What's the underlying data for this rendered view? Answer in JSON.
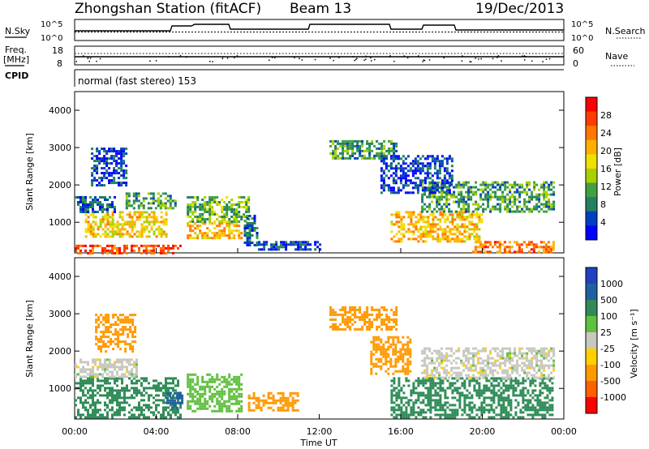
{
  "header": {
    "station": "Zhongshan Station (fitACF)",
    "beam": "Beam 13",
    "date": "19/Dec/2013"
  },
  "top_panels": {
    "nsky_label": "N.Sky",
    "nsearch_label": "N.Search",
    "freq_label_1": "Freq.",
    "freq_label_2": "[MHz]",
    "cpid_label": "CPID",
    "nave_label": "Nave",
    "nsky_ticks": [
      "10^5",
      "10^0"
    ],
    "nsearch_ticks": [
      "10^5",
      "10^0"
    ],
    "freq_ticks": [
      "18",
      "8"
    ],
    "nave_ticks": [
      "60",
      "0"
    ],
    "cpid_text": "normal (fast stereo) 153"
  },
  "x_axis": {
    "label": "Time UT",
    "ticks": [
      "00:00",
      "04:00",
      "08:00",
      "12:00",
      "16:00",
      "20:00",
      "00:00"
    ]
  },
  "power_colorbar": {
    "label": "Power [dB]",
    "ticks": [
      "28",
      "24",
      "20",
      "16",
      "12",
      "8",
      "4"
    ],
    "colors": [
      "#ff0000",
      "#ff3c00",
      "#ff7800",
      "#ffb000",
      "#f0e000",
      "#a8d000",
      "#40a040",
      "#208060",
      "#0040c0",
      "#0000ff"
    ]
  },
  "velocity_colorbar": {
    "label": "Velocity [m s⁻¹]",
    "ticks": [
      "1000",
      "500",
      "100",
      "25",
      "-25",
      "-100",
      "-500",
      "-1000"
    ],
    "colors": [
      "#2040c0",
      "#2060a0",
      "#2e8b57",
      "#60c040",
      "#c8c8c0",
      "#ffd000",
      "#ff9900",
      "#ff6000",
      "#ff0000"
    ]
  },
  "chart_data": [
    {
      "type": "heatmap",
      "title": "Power",
      "ylabel": "Slant Range [km]",
      "xlabel": "",
      "xlim": [
        0,
        24
      ],
      "ylim": [
        180,
        4500
      ],
      "y_ticks": [
        "4000",
        "3000",
        "2000",
        "1000"
      ],
      "y_tick_values": [
        4000,
        3000,
        2000,
        1000
      ],
      "colorbar": "Power [dB]",
      "regions": [
        {
          "t0": 0.0,
          "t1": 5.2,
          "r0": 200,
          "r1": 400,
          "value": 28
        },
        {
          "t0": 0.5,
          "t1": 4.5,
          "r0": 600,
          "r1": 1300,
          "value": 20
        },
        {
          "t0": 0.0,
          "t1": 2.0,
          "r0": 1300,
          "r1": 1700,
          "value": 8
        },
        {
          "t0": 0.8,
          "t1": 2.5,
          "r0": 2000,
          "r1": 3000,
          "value": 6
        },
        {
          "t0": 2.5,
          "t1": 5.0,
          "r0": 1400,
          "r1": 1800,
          "value": 12
        },
        {
          "t0": 5.5,
          "t1": 8.2,
          "r0": 600,
          "r1": 1000,
          "value": 22
        },
        {
          "t0": 5.5,
          "t1": 8.5,
          "r0": 1000,
          "r1": 1700,
          "value": 14
        },
        {
          "t0": 8.3,
          "t1": 9.0,
          "r0": 400,
          "r1": 1200,
          "value": 8
        },
        {
          "t0": 9.0,
          "t1": 12.0,
          "r0": 300,
          "r1": 500,
          "value": 6
        },
        {
          "t0": 12.5,
          "t1": 15.8,
          "r0": 2700,
          "r1": 3200,
          "value": 12
        },
        {
          "t0": 15.5,
          "t1": 20.0,
          "r0": 500,
          "r1": 1300,
          "value": 22
        },
        {
          "t0": 17.0,
          "t1": 23.5,
          "r0": 1300,
          "r1": 2100,
          "value": 12
        },
        {
          "t0": 19.5,
          "t1": 23.5,
          "r0": 200,
          "r1": 500,
          "value": 26
        },
        {
          "t0": 15.0,
          "t1": 18.5,
          "r0": 1800,
          "r1": 2800,
          "value": 6
        }
      ]
    },
    {
      "type": "heatmap",
      "title": "Velocity",
      "ylabel": "Slant Range [km]",
      "xlabel": "Time UT",
      "xlim": [
        0,
        24
      ],
      "ylim": [
        180,
        4500
      ],
      "y_ticks": [
        "4000",
        "3000",
        "2000",
        "1000"
      ],
      "y_tick_values": [
        4000,
        3000,
        2000,
        1000
      ],
      "colorbar": "Velocity [m s⁻¹]",
      "regions": [
        {
          "t0": 0.0,
          "t1": 5.2,
          "r0": 200,
          "r1": 1300,
          "value": 150
        },
        {
          "t0": 0.0,
          "t1": 3.0,
          "r0": 1300,
          "r1": 1800,
          "value": 0
        },
        {
          "t0": 4.5,
          "t1": 5.3,
          "r0": 500,
          "r1": 900,
          "value": 700
        },
        {
          "t0": 5.5,
          "t1": 8.2,
          "r0": 400,
          "r1": 1400,
          "value": 60
        },
        {
          "t0": 1.0,
          "t1": 3.0,
          "r0": 2000,
          "r1": 3000,
          "value": -300
        },
        {
          "t0": 8.5,
          "t1": 11.0,
          "r0": 400,
          "r1": 900,
          "value": -150
        },
        {
          "t0": 12.5,
          "t1": 15.8,
          "r0": 2600,
          "r1": 3200,
          "value": -400
        },
        {
          "t0": 15.5,
          "t1": 23.5,
          "r0": 200,
          "r1": 1300,
          "value": 150
        },
        {
          "t0": 17.0,
          "t1": 23.5,
          "r0": 1300,
          "r1": 2100,
          "value": 0
        },
        {
          "t0": 14.5,
          "t1": 16.5,
          "r0": 1400,
          "r1": 2400,
          "value": -200
        }
      ]
    }
  ]
}
